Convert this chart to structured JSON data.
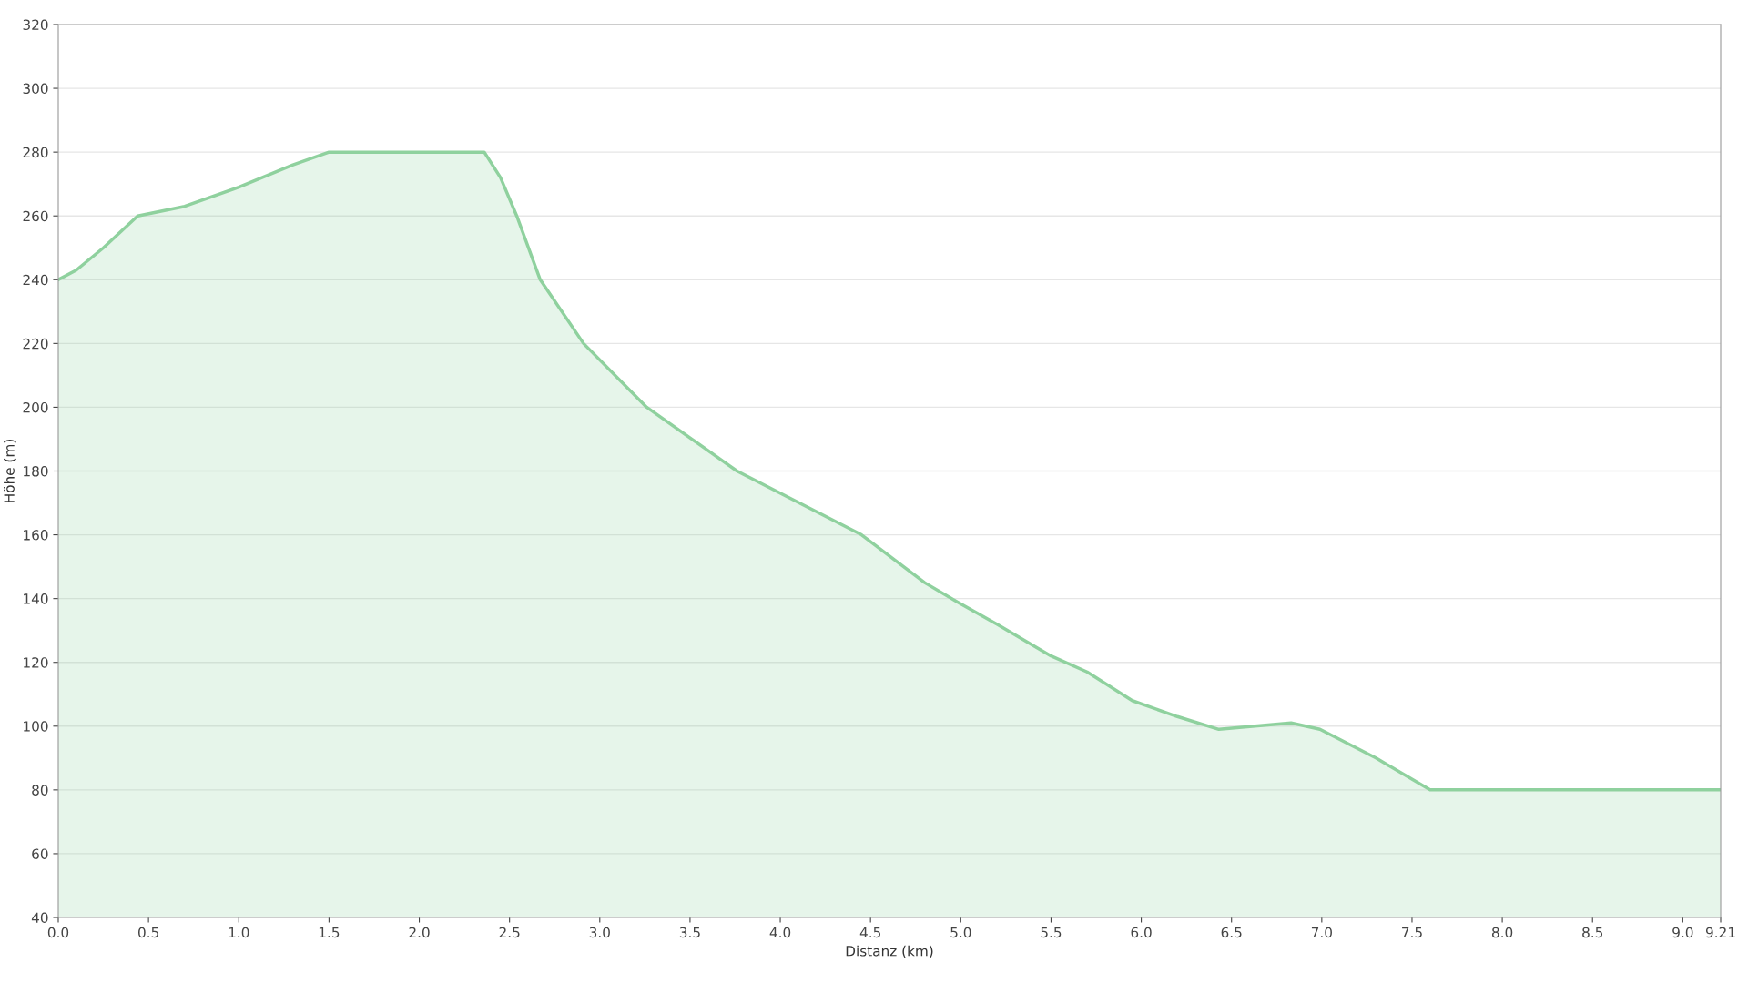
{
  "chart_data": {
    "type": "area",
    "xlabel": "Distanz (km)",
    "ylabel": "Höhe (m)",
    "x": [
      0,
      0.1,
      0.25,
      0.44,
      0.7,
      1.0,
      1.3,
      1.5,
      2.36,
      2.45,
      2.54,
      2.67,
      2.91,
      3.26,
      3.76,
      4.45,
      4.8,
      4.98,
      5.2,
      5.5,
      5.7,
      5.95,
      6.2,
      6.43,
      6.83,
      6.99,
      7.3,
      7.6,
      9.21
    ],
    "series": [
      {
        "color": "#8fd19e",
        "values": [
          240,
          243,
          250,
          260,
          263,
          269,
          276,
          280,
          280,
          272,
          260,
          240,
          220,
          200,
          180,
          160,
          145,
          139,
          132,
          122,
          117,
          108,
          103,
          99,
          101,
          99,
          90,
          80,
          80
        ]
      }
    ],
    "xlim": [
      0,
      9.21
    ],
    "xticks": [
      {
        "value": 0,
        "label": "0.0"
      },
      0.5,
      {
        "value": 1,
        "label": "1.0"
      },
      1.5,
      {
        "value": 2,
        "label": "2.0"
      },
      2.5,
      {
        "value": 3,
        "label": "3.0"
      },
      3.5,
      {
        "value": 4,
        "label": "4.0"
      },
      4.5,
      {
        "value": 5,
        "label": "5.0"
      },
      5.5,
      {
        "value": 6,
        "label": "6.0"
      },
      6.5,
      {
        "value": 7,
        "label": "7.0"
      },
      7.5,
      {
        "value": 8,
        "label": "8.0"
      },
      8.5,
      {
        "value": 9,
        "label": "9.0"
      },
      9.21
    ],
    "ylim": [
      40,
      320
    ],
    "yticks": [
      40,
      60,
      80,
      100,
      120,
      140,
      160,
      180,
      200,
      220,
      240,
      260,
      280,
      300,
      320
    ],
    "grid": "y",
    "legend": false
  }
}
